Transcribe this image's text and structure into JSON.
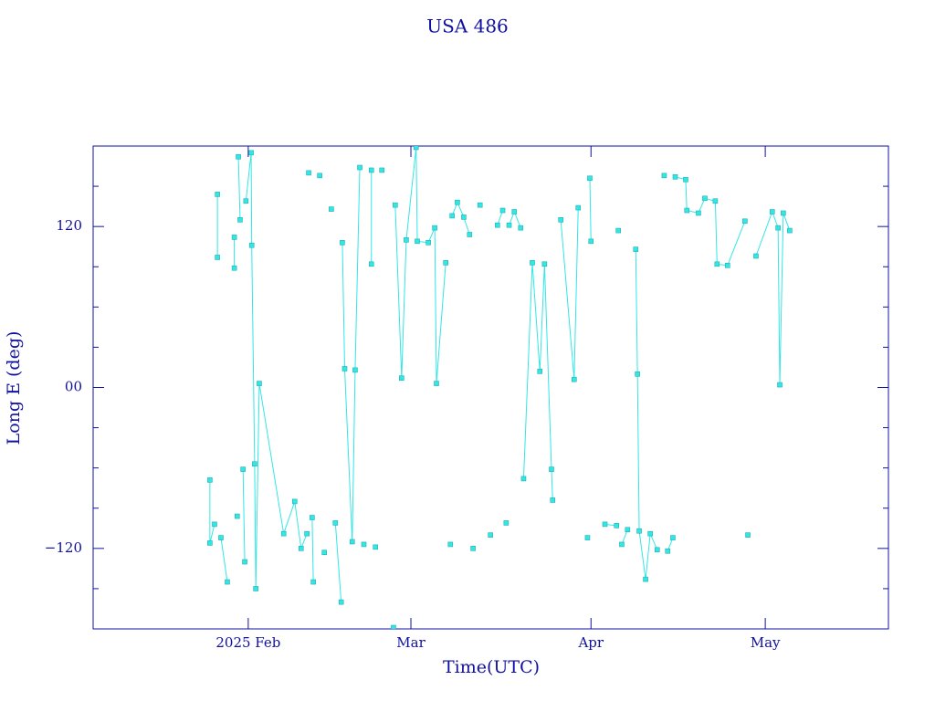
{
  "chart_data": {
    "type": "line",
    "title": "USA 486",
    "x_label": "Time(UTC)",
    "y_label": "Long E (deg)",
    "color": "#33e6e6",
    "markers": true,
    "xlim": [
      5.3,
      142.2
    ],
    "ylim": [
      -180,
      180
    ],
    "xticks": [
      {
        "value": 32,
        "label": "2025 Feb"
      },
      {
        "value": 60,
        "label": "Mar"
      },
      {
        "value": 91,
        "label": "Apr"
      },
      {
        "value": 121,
        "label": "May"
      }
    ],
    "yticks": [
      {
        "value": -120,
        "label": "−120"
      },
      {
        "value": 0,
        "label": "00"
      },
      120
    ],
    "y_minor_ticks": [
      -150,
      -90,
      -60,
      -30,
      30,
      60,
      90,
      150
    ],
    "x": [
      25.4,
      25.4,
      26.2,
      null,
      26.7,
      26.7,
      null,
      27.3,
      28.4,
      null,
      29.6,
      29.6,
      null,
      30.1,
      null,
      30.3,
      30.6,
      null,
      31.1,
      31.4,
      null,
      31.6,
      32.5,
      32.6,
      33.1,
      33.3,
      33.9,
      38.1,
      40.0,
      41.1,
      42.1,
      null,
      42.4,
      null,
      43.0,
      43.2,
      null,
      44.3,
      null,
      45.1,
      null,
      46.3,
      null,
      47.0,
      48.0,
      null,
      48.2,
      48.6,
      49.9,
      50.4,
      51.2,
      null,
      51.9,
      null,
      53.2,
      53.2,
      null,
      53.9,
      null,
      55.0,
      null,
      57.0,
      null,
      57.3,
      58.4,
      59.2,
      60.9,
      61.1,
      63.0,
      64.1,
      64.4,
      66.0,
      null,
      66.8,
      null,
      67.1,
      68.0,
      69.1,
      70.1,
      null,
      70.7,
      null,
      71.9,
      null,
      73.7,
      null,
      74.9,
      75.8,
      null,
      76.4,
      null,
      76.9,
      77.8,
      78.9,
      null,
      79.4,
      80.9,
      82.2,
      83.0,
      84.2,
      84.4,
      null,
      85.8,
      88.1,
      88.8,
      null,
      90.4,
      null,
      90.8,
      91.0,
      null,
      93.4,
      95.4,
      null,
      95.7,
      null,
      96.3,
      97.3,
      null,
      98.7,
      99.0,
      99.3,
      100.4,
      101.2,
      102.4,
      null,
      103.6,
      null,
      104.2,
      105.1,
      null,
      105.5,
      107.3,
      107.5,
      109.5,
      110.6,
      112.4,
      112.7,
      114.5,
      117.5,
      null,
      118.0,
      null,
      119.4,
      122.2,
      123.2,
      123.5,
      124.1,
      125.2
    ],
    "values": [
      -69,
      -116,
      -102,
      null,
      144,
      97,
      null,
      -112,
      -145,
      null,
      89,
      112,
      null,
      -96,
      null,
      172,
      125,
      null,
      -61,
      -130,
      null,
      139,
      175,
      106,
      -57,
      -150,
      3,
      -109,
      -85,
      -120,
      -109,
      null,
      160,
      null,
      -97,
      -145,
      null,
      158,
      null,
      -123,
      null,
      133,
      null,
      -101,
      -160,
      null,
      108,
      14,
      -115,
      13,
      164,
      null,
      -117,
      null,
      162,
      92,
      null,
      -119,
      null,
      162,
      null,
      -179,
      null,
      136,
      7,
      110,
      179,
      109,
      108,
      119,
      3,
      93,
      null,
      -117,
      null,
      128,
      138,
      127,
      114,
      null,
      -120,
      null,
      136,
      null,
      -110,
      null,
      121,
      132,
      null,
      -101,
      null,
      121,
      131,
      119,
      null,
      -68,
      93,
      12,
      92,
      -61,
      -84,
      null,
      125,
      6,
      134,
      null,
      -112,
      null,
      156,
      109,
      null,
      -102,
      -103,
      null,
      117,
      null,
      -117,
      -106,
      null,
      103,
      10,
      -107,
      -143,
      -109,
      -121,
      null,
      158,
      null,
      -122,
      -112,
      null,
      157,
      155,
      132,
      130,
      141,
      139,
      92,
      91,
      124,
      null,
      -110,
      null,
      98,
      131,
      119,
      2,
      130,
      117
    ]
  }
}
